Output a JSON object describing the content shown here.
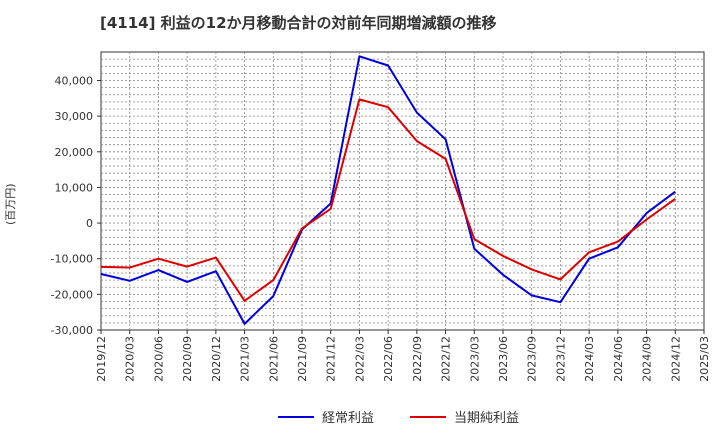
{
  "chart_data": {
    "type": "line",
    "title": "[4114]  利益の12か月移動合計の対前年同期増減額の推移",
    "xlabel": "",
    "ylabel": "(百万円)",
    "ylim": [
      -30000,
      48000
    ],
    "yticks": [
      -30000,
      -20000,
      -10000,
      0,
      10000,
      20000,
      30000,
      40000
    ],
    "ytick_labels": [
      "-30,000",
      "-20,000",
      "-10,000",
      "0",
      "10,000",
      "20,000",
      "30,000",
      "40,000"
    ],
    "x": [
      "2019/12",
      "2020/03",
      "2020/06",
      "2020/09",
      "2020/12",
      "2021/03",
      "2021/06",
      "2021/09",
      "2021/12",
      "2022/03",
      "2022/06",
      "2022/09",
      "2022/12",
      "2023/03",
      "2023/06",
      "2023/09",
      "2023/12",
      "2024/03",
      "2024/06",
      "2024/09",
      "2024/12",
      "2025/03"
    ],
    "grid": true,
    "legend_position": "bottom",
    "series": [
      {
        "name": "経常利益",
        "color": "#0000dd",
        "values": [
          -14300,
          -16200,
          -13200,
          -16500,
          -13500,
          -28300,
          -20500,
          -1800,
          5500,
          46800,
          44200,
          31000,
          23500,
          -7200,
          -14500,
          -20300,
          -22200,
          -10000,
          -6800,
          2800,
          8800,
          null
        ]
      },
      {
        "name": "当期純利益",
        "color": "#dd0000",
        "values": [
          -12300,
          -12500,
          -10000,
          -12200,
          -9700,
          -21800,
          -16000,
          -1500,
          4000,
          34700,
          32500,
          23000,
          18000,
          -4500,
          -9200,
          -13000,
          -15800,
          -8200,
          -5200,
          1000,
          6800,
          null
        ]
      }
    ]
  }
}
